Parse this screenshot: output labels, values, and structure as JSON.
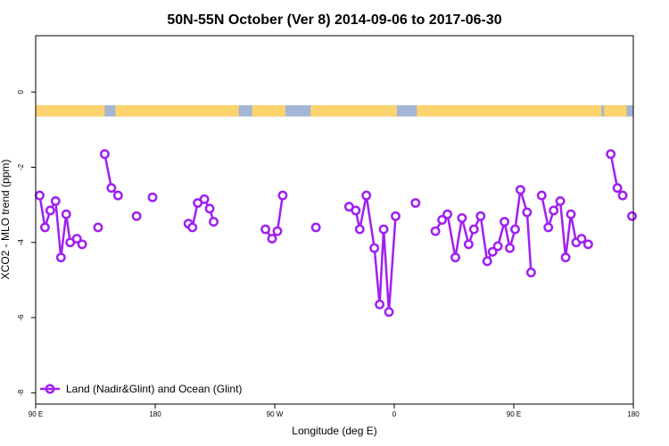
{
  "chart_data": {
    "type": "line",
    "title": "50N-55N October (Ver 8)   2014-09-06 to 2017-06-30",
    "xlabel": "Longitude (deg E)",
    "ylabel": "XCO2 - MLO trend (ppm)",
    "xlim": [
      90,
      540
    ],
    "ylim": [
      -8.3,
      1.5
    ],
    "x_ticks": [
      {
        "value": 90,
        "label": "90 E"
      },
      {
        "value": 180,
        "label": "180"
      },
      {
        "value": 270,
        "label": "90 W"
      },
      {
        "value": 360,
        "label": "0"
      },
      {
        "value": 450,
        "label": "90 E"
      },
      {
        "value": 540,
        "label": "180"
      }
    ],
    "y_ticks": [
      0,
      -2,
      -4,
      -6,
      -8
    ],
    "grid": false,
    "legend_position": "bottom-left",
    "colors": {
      "series": "#a020f0",
      "land": "#fcd36e",
      "ocean": "#a4b6d6"
    },
    "land_ocean_strip": {
      "y_range": [
        -0.65,
        -0.35
      ],
      "land_segments": [
        [
          90,
          142
        ],
        [
          150,
          243
        ],
        [
          253,
          278
        ],
        [
          297,
          362
        ],
        [
          377,
          516
        ],
        [
          518,
          535
        ]
      ]
    },
    "series": [
      {
        "name": "Land (Nadir&Glint) and Ocean (Glint)",
        "segments": [
          [
            [
              93,
              -2.75
            ],
            [
              97,
              -3.6
            ],
            [
              101,
              -3.15
            ],
            [
              105,
              -2.9
            ],
            [
              109,
              -4.4
            ],
            [
              113,
              -3.25
            ],
            [
              116,
              -4.0
            ],
            [
              121,
              -3.9
            ],
            [
              125,
              -4.05
            ]
          ],
          [
            [
              142,
              -1.65
            ],
            [
              147,
              -2.55
            ],
            [
              152,
              -2.75
            ]
          ],
          [
            [
              205,
              -3.5
            ],
            [
              208,
              -3.6
            ],
            [
              212,
              -2.95
            ],
            [
              217,
              -2.85
            ],
            [
              221,
              -3.1
            ],
            [
              224,
              -3.45
            ]
          ],
          [
            [
              263,
              -3.65
            ],
            [
              268,
              -3.9
            ],
            [
              272,
              -3.7
            ],
            [
              276,
              -2.75
            ]
          ],
          [
            [
              326,
              -3.05
            ],
            [
              331,
              -3.15
            ],
            [
              334,
              -3.65
            ],
            [
              339,
              -2.75
            ],
            [
              345,
              -4.15
            ],
            [
              349,
              -5.65
            ],
            [
              352,
              -3.65
            ],
            [
              356,
              -5.85
            ],
            [
              361,
              -3.3
            ]
          ],
          [
            [
              391,
              -3.7
            ],
            [
              396,
              -3.4
            ],
            [
              400,
              -3.25
            ],
            [
              406,
              -4.4
            ],
            [
              411,
              -3.35
            ],
            [
              416,
              -4.05
            ],
            [
              420,
              -3.65
            ],
            [
              425,
              -3.3
            ],
            [
              430,
              -4.5
            ],
            [
              434,
              -4.25
            ],
            [
              438,
              -4.1
            ],
            [
              443,
              -3.45
            ],
            [
              447,
              -4.15
            ],
            [
              451,
              -3.65
            ],
            [
              455,
              -2.6
            ],
            [
              460,
              -3.2
            ],
            [
              463,
              -4.8
            ]
          ],
          [
            [
              471,
              -2.75
            ],
            [
              476,
              -3.6
            ],
            [
              480,
              -3.15
            ],
            [
              485,
              -2.9
            ],
            [
              489,
              -4.4
            ],
            [
              493,
              -3.25
            ],
            [
              497,
              -4.0
            ],
            [
              501,
              -3.9
            ],
            [
              506,
              -4.05
            ]
          ],
          [
            [
              523,
              -1.65
            ],
            [
              528,
              -2.55
            ],
            [
              532,
              -2.75
            ]
          ]
        ],
        "isolated_points": [
          [
            137,
            -3.6
          ],
          [
            166,
            -3.3
          ],
          [
            178,
            -2.8
          ],
          [
            301,
            -3.6
          ],
          [
            376,
            -2.95
          ],
          [
            539,
            -3.3
          ]
        ]
      }
    ]
  }
}
